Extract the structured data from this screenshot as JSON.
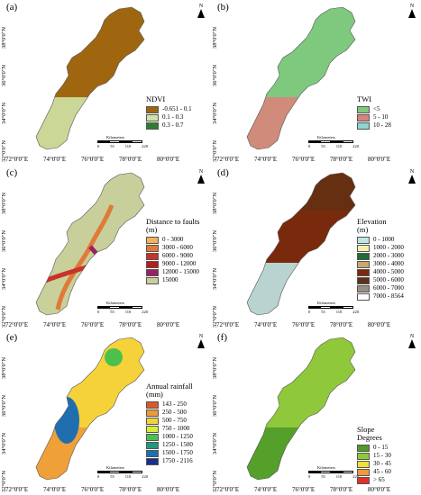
{
  "panels": [
    {
      "label": "(a)",
      "legend_title": "NDVI",
      "legend": [
        {
          "text": "-0.651 - 0.1",
          "color": "#a0660f"
        },
        {
          "text": "0.1 - 0.3",
          "color": "#cfe3a5"
        },
        {
          "text": "0.3 - 0.7",
          "color": "#2e7d2e"
        }
      ]
    },
    {
      "label": "(b)",
      "legend_title": "TWI",
      "legend": [
        {
          "text": "<5",
          "color": "#7ec97e"
        },
        {
          "text": "5 - 10",
          "color": "#d9847a"
        },
        {
          "text": "10 - 28",
          "color": "#8fd3d3"
        }
      ]
    },
    {
      "label": "(c)",
      "legend_title": "Distance to faults\n(m)",
      "legend": [
        {
          "text": "0 - 3000",
          "color": "#f2b35a"
        },
        {
          "text": "3000 - 6000",
          "color": "#e07a3a"
        },
        {
          "text": "6000 - 9000",
          "color": "#c8322a"
        },
        {
          "text": "9000 - 12000",
          "color": "#b71c1c"
        },
        {
          "text": "12000 - 15000",
          "color": "#9b2060"
        },
        {
          "text": "15000",
          "color": "#c9cf9a"
        }
      ]
    },
    {
      "label": "(d)",
      "legend_title": "Elevation\n(m)",
      "legend": [
        {
          "text": "0 - 1000",
          "color": "#bfe6e6"
        },
        {
          "text": "1000 - 2000",
          "color": "#f4f1b0"
        },
        {
          "text": "2000 - 3000",
          "color": "#1f6b3a"
        },
        {
          "text": "3000 - 4000",
          "color": "#c9a96b"
        },
        {
          "text": "4000 - 5000",
          "color": "#7a2a0c"
        },
        {
          "text": "5000 - 6000",
          "color": "#5a3418"
        },
        {
          "text": "6000 - 7000",
          "color": "#9a8f86"
        },
        {
          "text": "7000 - 8564",
          "color": "#ffffff"
        }
      ]
    },
    {
      "label": "(e)",
      "legend_title": "Annual rainfall\n(mm)",
      "legend": [
        {
          "text": "143 - 250",
          "color": "#d85a2a"
        },
        {
          "text": "250 - 500",
          "color": "#ef9a3a"
        },
        {
          "text": "500 - 750",
          "color": "#f6d23a"
        },
        {
          "text": "750 - 1000",
          "color": "#d8ec3a"
        },
        {
          "text": "1000 - 1250",
          "color": "#4cc04c"
        },
        {
          "text": "1250 - 1500",
          "color": "#1f9a7a"
        },
        {
          "text": "1500 - 1750",
          "color": "#1f6fb0"
        },
        {
          "text": "1750 - 2116",
          "color": "#1a2f8a"
        }
      ]
    },
    {
      "label": "(f)",
      "legend_title": "Slope\nDegrees",
      "legend": [
        {
          "text": "0 - 15",
          "color": "#4f9a2a"
        },
        {
          "text": "15 - 30",
          "color": "#8fc83a"
        },
        {
          "text": "30 - 45",
          "color": "#f0e03a"
        },
        {
          "text": "45 - 60",
          "color": "#f09a3a"
        },
        {
          "text": "> 65",
          "color": "#e0302a"
        }
      ]
    }
  ],
  "axis": {
    "x_ticks": [
      "72°0'0\"E",
      "74°0'0\"E",
      "76°0'0\"E",
      "78°0'0\"E",
      "80°0'0\"E"
    ],
    "y_ticks": [
      "32°0'0\"N",
      "34°0'0\"N",
      "36°0'0\"N",
      "38°0'0\"N"
    ]
  },
  "scale_bar": {
    "title": "Kilometers",
    "ticks": [
      "0",
      "55",
      "110",
      "220"
    ]
  },
  "north_label": "N"
}
